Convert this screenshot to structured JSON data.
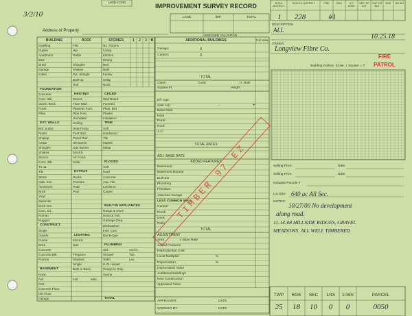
{
  "header": {
    "land_code": "LAND CODE",
    "title": "IMPROVEMENT SURVEY RECORD",
    "valuation_columns": [
      "LAND",
      "IMP.",
      "TOTAL"
    ],
    "valuation_caption": "ASSESSED VALUATION",
    "address_label": "Address of Property",
    "handwritten_date": "3/2/10"
  },
  "district_columns": {
    "headers": [
      "ROAD DISTRICT",
      "SCHOOL DISTRICT",
      "FIRE",
      "CEM.",
      "A.P. HOSP.",
      "SEC. OF LOT",
      "TWP OR BLK",
      "RGE",
      "TAX NO"
    ],
    "entries": [
      "1",
      "228",
      "#1"
    ]
  },
  "description": {
    "label": "DESCRIPTION",
    "value": "ALL",
    "date": "10.25.18",
    "owner_label": "OWNER",
    "owner": "Longview Fibre Co."
  },
  "left_form": {
    "columns": [
      {
        "header": "BUILDING",
        "groups": [
          {
            "items": [
              "Dwelling",
              "Duplex",
              "Apartment",
              "Barn",
              "Shed",
              "Garage",
              "Cabin"
            ]
          },
          {
            "title": "FOUNDATION",
            "items": [
              "Concrete",
              "Conc. Blk.",
              "Stone, Brick",
              "Posts",
              "Piles"
            ]
          },
          {
            "title": "EXT. WALLS",
            "items": [
              "Brd. & Bat.",
              "Rustic",
              "Shiplap",
              "Cedar",
              "Shingles",
              "Shakes",
              "Stucco",
              "Conc. Blk.",
              "T1-11",
              "Tile",
              "Stone",
              "Galv. Iron",
              "Aluminum",
              "Brick",
              "Vinyl",
              "Masonite",
              "Brick Ven.",
              "Cem. Sd.",
              "Roman",
              "Rugged"
            ]
          },
          {
            "title": "CONSTRUCT.",
            "items": [
              "Single",
              "Double",
              "Frame",
              "Brick",
              "Concrete",
              "Concrete Blk.",
              "Pumice"
            ]
          },
          {
            "title": "BASEMENT",
            "items": [
              "None",
              "Full",
              "Part",
              "Concrete Floor",
              "Dirt Floor",
              "Garage"
            ]
          }
        ]
      },
      {
        "header": "ROOF",
        "groups": [
          {
            "items": [
              "Flat",
              "Hip",
              "Gable"
            ]
          },
          {
            "items": [
              "Shingles",
              "Shakes",
              "Pyt. Shingle",
              "Built-up",
              "Roll"
            ]
          },
          {
            "title": "HEATING",
            "items": [
              "Stoves",
              "Floor Wall",
              "Pipeless Furn.",
              "Pipe Furn.",
              "Hot Water",
              "Ceiling",
              "Heat Pump",
              "Fuel Rad.",
              "Panel Rad.",
              "Oil Burner",
              "Gas Burner",
              "Electric",
              "Air Cond.",
              "Solar"
            ]
          },
          {
            "title": "EXTRAS",
            "items": [
              "Decks",
              "Porches",
              "Patio",
              "Pool"
            ]
          },
          {
            "title": "LIGHTING",
            "items": [
              "Electric",
              "Gas"
            ]
          },
          {
            "items": [
              "Fireplace",
              "Stacked",
              "Single",
              "Bath in Back"
            ]
          },
          {
            "items": [
              [
                "Full",
                "Misc."
              ]
            ]
          }
        ]
      },
      {
        "header": "STORIES",
        "groups": [
          {
            "items": [
              "No. Rooms",
              "Living",
              "Kitchen",
              "Dining",
              "Bed",
              "Bath",
              "Family",
              "Utility",
              "Nook"
            ]
          },
          {
            "title": "CEILED",
            "items": [
              "Wall Board",
              "Paneled",
              "Plast. Brd",
              "Plaster",
              "Insulation"
            ]
          },
          {
            "title": "TRIM",
            "items": [
              "Soft",
              "Hardwood",
              "Tile",
              "Marble",
              "Metal"
            ]
          },
          {
            "title": "FLOORS",
            "items": [
              "Soft",
              "Hard",
              "Concrete",
              "Asp. Tile",
              "Linoleum",
              "Carpet"
            ]
          },
          {
            "title": "BUILT-IN APPLIANCES",
            "items": [
              "Range & Oven",
              "Hood & Fan",
              "Garbage Disp.",
              "Dishwasher",
              "Inter Com",
              "Bar-B-Que"
            ]
          },
          {
            "title": "PLUMBING",
            "items": [
              [
                "Std.",
                "2nd G."
              ],
              [
                "Shower",
                "Tub"
              ],
              [
                "Toilet",
                "Lav."
              ],
              "H.W. Heater",
              "Rough-in Only",
              "Sauna"
            ]
          },
          {
            "title": "TOTAL"
          }
        ]
      }
    ],
    "stories_subheaders": [
      "1",
      "2",
      "3",
      "B"
    ]
  },
  "middle": {
    "additional_buildings": "ADDITIONAL BUILDINGS",
    "full_value": "Full Value",
    "buildings": [
      {
        "label": "Garage:",
        "mark": "X"
      },
      {
        "label": "Carport:",
        "mark": "X"
      }
    ],
    "buildings_total": "TOTAL",
    "class_labels": [
      "Class",
      "Cond.",
      "Yr. Built"
    ],
    "size_labels": [
      "Square Ft.",
      "Height"
    ],
    "rate_labels": [
      "Eff. Age:",
      "Sale Adj.:",
      "Base Rate",
      "Heat",
      "Rural",
      "Roof:",
      "A.C.:"
    ],
    "sale_adj_signs": [
      "-",
      "+"
    ],
    "total_rates": "TOTAL RATES",
    "adj_base_rate": "ADJ. BASE RATE",
    "added_features_title": "ADDED FEATURES",
    "added_features": [
      "Basement",
      "Basement Rooms",
      "Built-ins",
      "Plumbing",
      "Fireplace",
      "Attached Garage",
      "LESS COMMON WALL",
      "Carport",
      "Porch",
      "Deck",
      "Patio"
    ],
    "added_total": "TOTAL",
    "adjustment_title": "ADJUSTMENT",
    "adjustment": [
      "Area",
      "Added Features",
      "Reproduction Cost",
      "Local Multiplier",
      "Depreciation",
      "Depreciated Value",
      "Additional Buildings",
      "New Construction",
      "Appraised Value"
    ],
    "area_suffix": "x Base Rate",
    "percent_signs": [
      "%",
      "%"
    ],
    "signatures": [
      {
        "role": "APPRAISER:",
        "date": "DATE"
      },
      {
        "role": "WORKED BY:",
        "date": "DATE"
      }
    ]
  },
  "right": {
    "building_outline": "Building Outline: Scale, 1 Square = 2'",
    "fire_patrol": [
      "FIRE",
      "PATROL"
    ],
    "sales": [
      {
        "price_label": "Selling Price",
        "date_label": "Date"
      },
      {
        "price_label": "Selling Price",
        "date_label": "Date"
      }
    ],
    "parcels_label": "Includes Parcels #",
    "lot_size_label": "Lot Size:",
    "lot_size": "640 ac All Sec.",
    "notes_label": "NOTES:",
    "notes": [
      "10/27/00 No development",
      "along road.",
      "11-14-08 HILLSIDE RIDGES, GRAVEL",
      "MEADOWS. ALL WELL TIMBERED"
    ]
  },
  "stamp": "TIMBER 97 EZ",
  "parcel_table": {
    "headers": [
      "TWP",
      "RGE",
      "SEC",
      "1/4S",
      "1/16S",
      "PARCEL"
    ],
    "values": [
      "25",
      "18",
      "10",
      "0",
      "0",
      "0050"
    ]
  }
}
